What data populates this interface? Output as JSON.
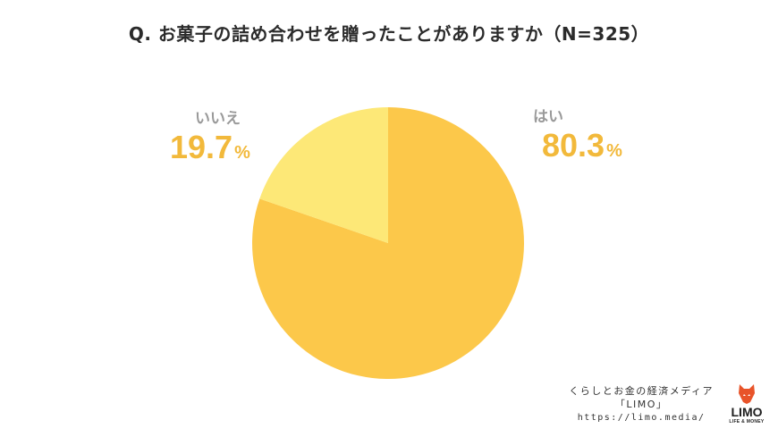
{
  "title": "Q. お菓子の詰め合わせを贈ったことがありますか（N=325）",
  "chart_data": {
    "type": "pie",
    "title": "Q. お菓子の詰め合わせを贈ったことがありますか（N=325）",
    "slices": [
      {
        "label": "はい",
        "value": 80.3,
        "display": "80.3",
        "unit": "%",
        "color": "#fcc84a"
      },
      {
        "label": "いいえ",
        "value": 19.7,
        "display": "19.7",
        "unit": "%",
        "color": "#fde877"
      }
    ]
  },
  "footer": {
    "line1": "くらしとお金の経済メディア",
    "line2": "「LIMO」",
    "url": "https://limo.media/"
  },
  "logo": {
    "name": "LIMO",
    "tagline": "LIFE & MONEY",
    "color": "#e8542a"
  }
}
